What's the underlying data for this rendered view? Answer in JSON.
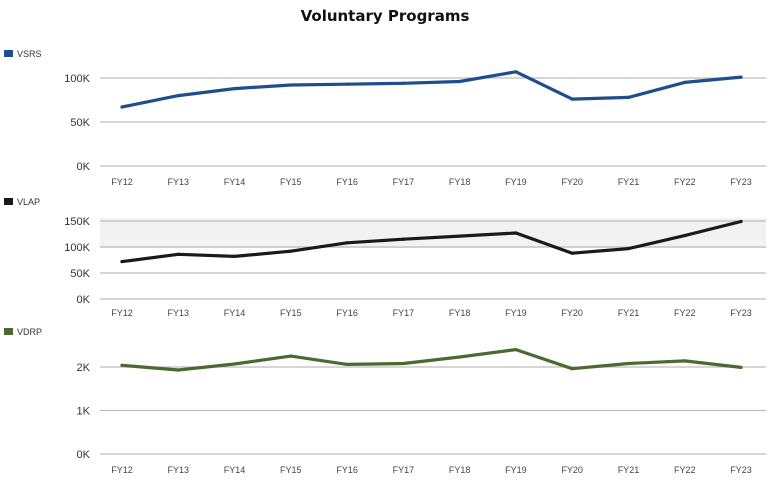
{
  "chart_data": {
    "type": "line",
    "title": "Voluntary Programs",
    "x": [
      "FY12",
      "FY13",
      "FY14",
      "FY15",
      "FY16",
      "FY17",
      "FY18",
      "FY19",
      "FY20",
      "FY21",
      "FY22",
      "FY23"
    ],
    "panels": [
      {
        "name": "VSRS",
        "color": "#1f4e8c",
        "ylim": [
          0,
          100000
        ],
        "yticks": [
          0,
          50000,
          100000
        ],
        "ytick_labels": [
          "0K",
          "50K",
          "100K"
        ],
        "values": [
          67000,
          80000,
          88000,
          92000,
          93000,
          94000,
          96000,
          107000,
          76000,
          78000,
          95000,
          101000
        ]
      },
      {
        "name": "VLAP",
        "color": "#1a1a1a",
        "ylim": [
          0,
          150000
        ],
        "yticks": [
          0,
          50000,
          100000,
          150000
        ],
        "ytick_labels": [
          "0K",
          "50K",
          "100K",
          "150K"
        ],
        "values": [
          72000,
          86000,
          82000,
          92000,
          108000,
          115000,
          121000,
          127000,
          88000,
          97000,
          122000,
          149000
        ]
      },
      {
        "name": "VDRP",
        "color": "#4a6a32",
        "ylim": [
          0,
          2000
        ],
        "yticks": [
          0,
          1000,
          2000
        ],
        "ytick_labels": [
          "0K",
          "1K",
          "2K"
        ],
        "values": [
          2040,
          1930,
          2070,
          2250,
          2060,
          2080,
          2230,
          2400,
          1960,
          2080,
          2140,
          1990
        ]
      }
    ]
  }
}
